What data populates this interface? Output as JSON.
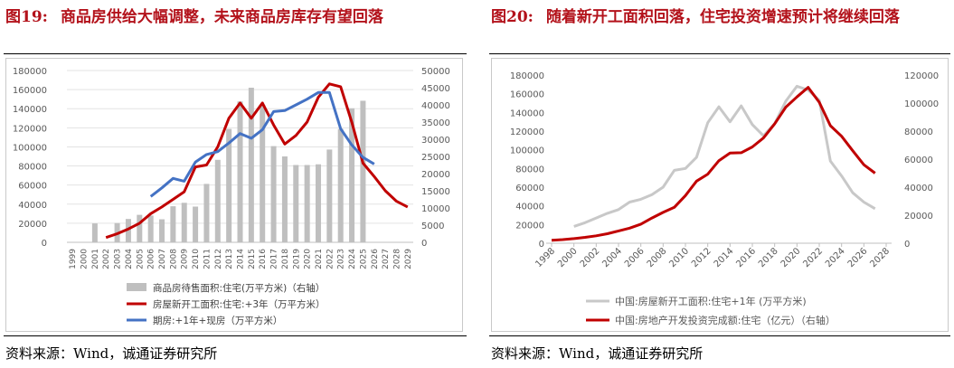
{
  "figures": [
    {
      "id": "left",
      "fig_number": "图19:",
      "title": "商品房供给大幅调整，未来商品房库存有望回落",
      "source": "资料来源：Wind，诚通证券研究所"
    },
    {
      "id": "right",
      "fig_number": "图20:",
      "title": "随着新开工面积回落，住宅投资增速预计将继续回落",
      "source": "资料来源：Wind，诚通证券研究所"
    }
  ],
  "colors": {
    "title_red": "#b3121b",
    "grey_bar": "#bfbfbf",
    "red_line": "#c00000",
    "blue_line": "#4472c4",
    "grey_line": "#c8c8c8",
    "axis_text": "#595959"
  },
  "chart_data": [
    {
      "type": "bar",
      "x": [
        "1999",
        "2000",
        "2001",
        "2002",
        "2003",
        "2004",
        "2005",
        "2006",
        "2007",
        "2008",
        "2009",
        "2010",
        "2011",
        "2012",
        "2013",
        "2014",
        "2015",
        "2016",
        "2017",
        "2018",
        "2019",
        "2020",
        "2021",
        "2022",
        "2023",
        "2024",
        "2025",
        "2026",
        "2027",
        "2028",
        "2029"
      ],
      "ylim": [
        0,
        180000
      ],
      "y2lim": [
        0,
        50000
      ],
      "yticks": [
        "0",
        "20000",
        "40000",
        "60000",
        "80000",
        "100000",
        "120000",
        "140000",
        "160000",
        "180000"
      ],
      "y2ticks": [
        "0",
        "5000",
        "10000",
        "15000",
        "20000",
        "25000",
        "30000",
        "35000",
        "40000",
        "45000",
        "50000"
      ],
      "grid": true,
      "legend_position": "bottom",
      "series": [
        {
          "name": "商品房待售面积:住宅(万平方米)（右轴）",
          "type": "bar",
          "axis": "right",
          "color": "#bfbfbf",
          "values": [
            null,
            null,
            5500,
            null,
            5600,
            6800,
            8000,
            7800,
            6700,
            10500,
            11500,
            10400,
            17000,
            24000,
            33000,
            41000,
            45000,
            40000,
            28000,
            25000,
            22500,
            22500,
            22700,
            27000,
            33000,
            39000,
            41200,
            null,
            null,
            null,
            null
          ]
        },
        {
          "name": "房屋新开工面积:住宅:+3年（万平方米）",
          "type": "line",
          "axis": "left",
          "color": "#c00000",
          "values": [
            null,
            null,
            null,
            5000,
            9000,
            14000,
            20000,
            30000,
            37000,
            45000,
            53000,
            79000,
            81000,
            100000,
            130000,
            146000,
            130000,
            146000,
            123000,
            103000,
            112000,
            126000,
            152000,
            166000,
            163000,
            126000,
            83000,
            69000,
            54000,
            43000,
            37000
          ]
        },
        {
          "name": "期房:+1年+现房（万平方米）",
          "type": "line",
          "axis": "left",
          "color": "#4472c4",
          "values": [
            null,
            null,
            null,
            null,
            null,
            null,
            null,
            48000,
            57000,
            67000,
            64000,
            84000,
            92000,
            95000,
            104000,
            114000,
            109000,
            118000,
            137000,
            138000,
            144000,
            150000,
            157000,
            157000,
            119000,
            102000,
            89000,
            82000,
            null,
            null,
            null
          ]
        }
      ]
    },
    {
      "type": "line",
      "x": [
        "1998",
        "1999",
        "2000",
        "2001",
        "2002",
        "2003",
        "2004",
        "2005",
        "2006",
        "2007",
        "2008",
        "2009",
        "2010",
        "2011",
        "2012",
        "2013",
        "2014",
        "2015",
        "2016",
        "2017",
        "2018",
        "2019",
        "2020",
        "2021",
        "2022",
        "2023",
        "2024",
        "2025",
        "2026",
        "2027",
        "2028"
      ],
      "xticks": [
        "1998",
        "2000",
        "2002",
        "2004",
        "2006",
        "2008",
        "2010",
        "2012",
        "2014",
        "2016",
        "2018",
        "2020",
        "2022",
        "2024",
        "2026",
        "2028"
      ],
      "ylim": [
        0,
        180000
      ],
      "y2lim": [
        0,
        120000
      ],
      "yticks": [
        "0",
        "20000",
        "40000",
        "60000",
        "80000",
        "100000",
        "120000",
        "140000",
        "160000",
        "180000"
      ],
      "y2ticks": [
        "0",
        "20000",
        "40000",
        "60000",
        "80000",
        "100000",
        "120000"
      ],
      "grid": false,
      "legend_position": "bottom",
      "series": [
        {
          "name": "中国:房屋新开工面积:住宅+1年 (万平方米)",
          "axis": "left",
          "color": "#c8c8c8",
          "values": [
            null,
            null,
            18000,
            22000,
            27000,
            32000,
            36000,
            44000,
            47000,
            52000,
            60000,
            78000,
            80000,
            92000,
            129000,
            146000,
            130000,
            147000,
            127000,
            115000,
            128000,
            152000,
            168000,
            164000,
            153000,
            88000,
            72000,
            54000,
            44000,
            37000,
            null
          ]
        },
        {
          "name": "中国:房地产开发投资完成额:住宅（亿元）（右轴）",
          "axis": "right",
          "color": "#c00000",
          "values": [
            2100,
            2600,
            3300,
            4200,
            5300,
            6800,
            8800,
            10800,
            13600,
            18000,
            22000,
            25600,
            34000,
            44300,
            49300,
            58900,
            64300,
            64600,
            68700,
            75100,
            85200,
            97100,
            104400,
            111200,
            100600,
            83900,
            76300,
            66000,
            56000,
            50000,
            null
          ]
        }
      ]
    }
  ]
}
